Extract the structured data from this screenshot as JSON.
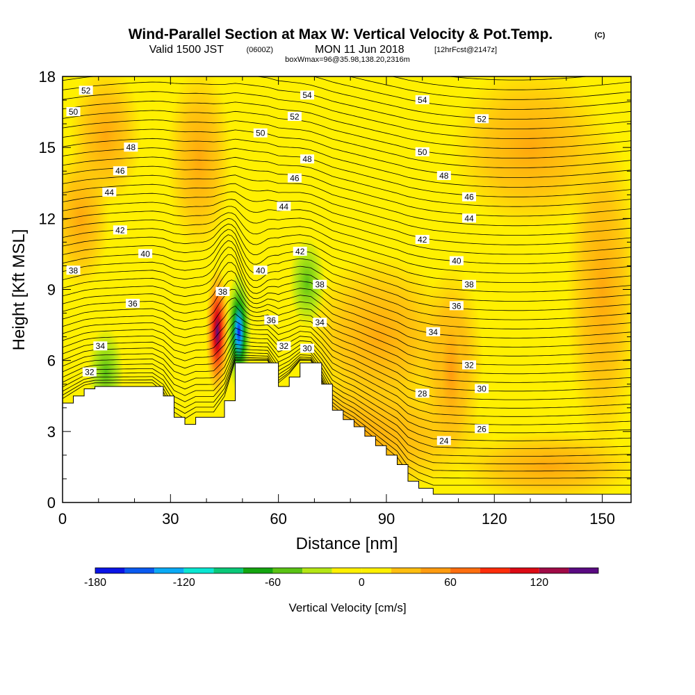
{
  "header": {
    "title": "Wind-Parallel Section at Max W: Vertical Velocity & Pot.Temp.",
    "title_mark": "(C)",
    "valid_prefix": "Valid 1500 JST",
    "valid_utc": "(0600Z)",
    "valid_date": "MON 11 Jun 2018",
    "forecast": "[12hrFcst@2147z]",
    "boxmax": "boxWmax=96@35.98,138.20,2316m"
  },
  "chart_data": {
    "type": "heatmap",
    "xlabel": "Distance [nm]",
    "ylabel": "Height [Kft MSL]",
    "xlim": [
      0,
      158
    ],
    "ylim": [
      0,
      18
    ],
    "x_ticks": [
      0,
      30,
      60,
      90,
      120,
      150
    ],
    "y_ticks": [
      0,
      3,
      6,
      9,
      12,
      15,
      18
    ],
    "terrain_profile": {
      "x": [
        0,
        3,
        6,
        9,
        12,
        25,
        28,
        31,
        34,
        37,
        42,
        45,
        48,
        57,
        60,
        63,
        66,
        69,
        72,
        75,
        78,
        81,
        84,
        87,
        90,
        93,
        96,
        99,
        103,
        158
      ],
      "height": [
        4.2,
        4.5,
        4.8,
        4.9,
        4.9,
        4.9,
        4.5,
        3.6,
        3.3,
        3.6,
        3.6,
        4.3,
        5.9,
        5.9,
        4.9,
        5.3,
        5.9,
        5.9,
        5.0,
        3.9,
        3.5,
        3.2,
        2.8,
        2.4,
        2.0,
        1.6,
        0.9,
        0.6,
        0.35,
        0.35
      ]
    },
    "potential_temperature_contours": {
      "interval_c": 2,
      "labels": [
        {
          "value": 52,
          "x": 6.5,
          "height": 17.4
        },
        {
          "value": 50,
          "x": 3,
          "height": 16.5
        },
        {
          "value": 48,
          "x": 19,
          "height": 15.0
        },
        {
          "value": 46,
          "x": 16,
          "height": 14.0
        },
        {
          "value": 44,
          "x": 13,
          "height": 13.1
        },
        {
          "value": 42,
          "x": 16,
          "height": 11.5
        },
        {
          "value": 40,
          "x": 23,
          "height": 10.5
        },
        {
          "value": 38,
          "x": 3,
          "height": 9.8
        },
        {
          "value": 36,
          "x": 19.5,
          "height": 8.4
        },
        {
          "value": 34,
          "x": 10.5,
          "height": 6.6
        },
        {
          "value": 32,
          "x": 7.5,
          "height": 5.5
        },
        {
          "value": 38,
          "x": 44.5,
          "height": 8.9
        },
        {
          "value": 40,
          "x": 55,
          "height": 9.8
        },
        {
          "value": 42,
          "x": 66,
          "height": 10.6
        },
        {
          "value": 38,
          "x": 71.5,
          "height": 9.2
        },
        {
          "value": 36,
          "x": 58,
          "height": 7.7
        },
        {
          "value": 34,
          "x": 71.5,
          "height": 7.6
        },
        {
          "value": 32,
          "x": 61.5,
          "height": 6.6
        },
        {
          "value": 30,
          "x": 68,
          "height": 6.5
        },
        {
          "value": 54,
          "x": 68,
          "height": 17.2
        },
        {
          "value": 52,
          "x": 64.5,
          "height": 16.3
        },
        {
          "value": 50,
          "x": 55,
          "height": 15.6
        },
        {
          "value": 48,
          "x": 68,
          "height": 14.5
        },
        {
          "value": 46,
          "x": 64.5,
          "height": 13.7
        },
        {
          "value": 44,
          "x": 61.5,
          "height": 12.5
        },
        {
          "value": 54,
          "x": 100,
          "height": 17.0
        },
        {
          "value": 52,
          "x": 116.5,
          "height": 16.2
        },
        {
          "value": 50,
          "x": 100,
          "height": 14.8
        },
        {
          "value": 48,
          "x": 106,
          "height": 13.8
        },
        {
          "value": 46,
          "x": 113,
          "height": 12.9
        },
        {
          "value": 44,
          "x": 113,
          "height": 12.0
        },
        {
          "value": 42,
          "x": 100,
          "height": 11.1
        },
        {
          "value": 40,
          "x": 109.5,
          "height": 10.2
        },
        {
          "value": 38,
          "x": 113,
          "height": 9.2
        },
        {
          "value": 36,
          "x": 109.5,
          "height": 8.3
        },
        {
          "value": 34,
          "x": 103,
          "height": 7.2
        },
        {
          "value": 32,
          "x": 113,
          "height": 5.8
        },
        {
          "value": 30,
          "x": 116.5,
          "height": 4.8
        },
        {
          "value": 28,
          "x": 100,
          "height": 4.6
        },
        {
          "value": 26,
          "x": 116.5,
          "height": 3.1
        },
        {
          "value": 24,
          "x": 106,
          "height": 2.6
        }
      ]
    },
    "colorbar": {
      "label": "Vertical Velocity [cm/s]",
      "min": -180,
      "max": 140,
      "step": 20,
      "tick_values": [
        -180,
        -120,
        -60,
        0,
        60,
        120
      ],
      "tick_labels": [
        "-180",
        "-120",
        "-60",
        "0",
        "60",
        "120"
      ],
      "colors": [
        "#0a14e6",
        "#0a5af0",
        "#0aaaf5",
        "#0ae6d2",
        "#0ac878",
        "#14a50f",
        "#5ac314",
        "#b4e614",
        "#fff000",
        "#fff000",
        "#ffbe0f",
        "#ff9b0f",
        "#ff6e0f",
        "#ff2d0a",
        "#dc0a14",
        "#a00a46",
        "#5a0a82"
      ]
    },
    "velocity_features": [
      {
        "kind": "updraft",
        "x": 43,
        "height": 7.2,
        "peak_cm_s": 96
      },
      {
        "kind": "downdraft",
        "x": 49,
        "height": 7.2,
        "peak_cm_s": -80
      },
      {
        "kind": "downdraft",
        "x": 68,
        "height": 9.3,
        "peak_cm_s": -30
      },
      {
        "kind": "downdraft",
        "x": 12,
        "height": 5.5,
        "peak_cm_s": -30
      },
      {
        "kind": "updraft",
        "x": 108,
        "height": 5.5,
        "peak_cm_s": 25
      }
    ]
  }
}
